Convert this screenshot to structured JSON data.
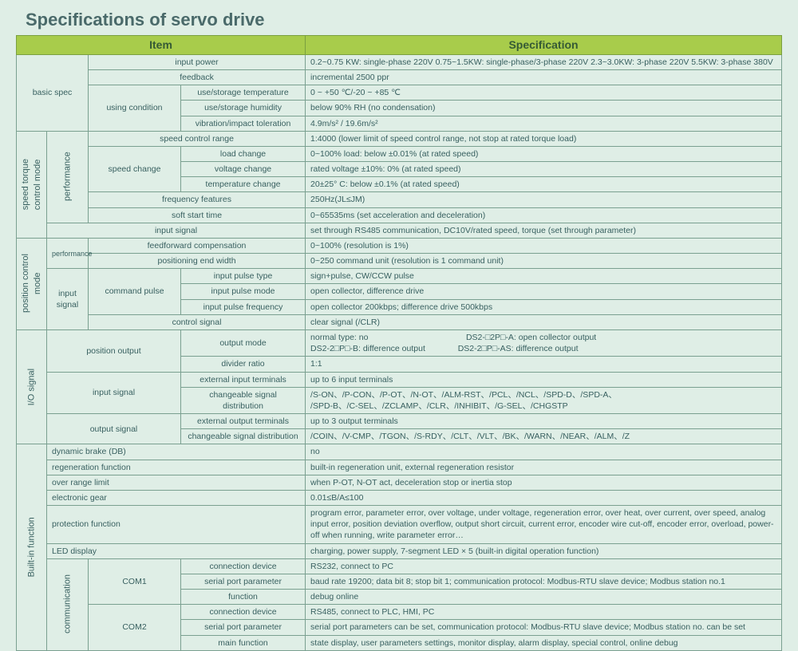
{
  "colors": {
    "bg": "#dfeee6",
    "headerBg": "#a8cc4b",
    "border": "#7aa090",
    "text": "#386060"
  },
  "title": "Specifications of servo drive",
  "header": {
    "item": "Item",
    "spec": "Specification"
  },
  "basic": {
    "label": "basic spec",
    "rows": {
      "input_power": {
        "l": "input power",
        "v": "0.2~0.75 KW: single-phase 220V  0.75~1.5KW: single-phase/3-phase 220V  2.3~3.0KW: 3-phase 220V  5.5KW: 3-phase 380V"
      },
      "feedback": {
        "l": "feedback",
        "v": "incremental 2500 ppr"
      },
      "using_cond": "using condition",
      "uc1": {
        "l": "use/storage temperature",
        "v": "0 ~ +50 ℃/-20 ~ +85 ℃"
      },
      "uc2": {
        "l": "use/storage humidity",
        "v": "below 90% RH (no condensation)"
      },
      "uc3": {
        "l": "vibration/impact toleration",
        "v": "4.9m/s²  / 19.6m/s²"
      }
    }
  },
  "stc": {
    "label": "speed torque\ncontrol mode",
    "perf": "performance",
    "rows": {
      "scr": {
        "l": "speed control range",
        "v": "1:4000 (lower limit of speed control range, not stop at rated torque load)"
      },
      "sc_label": "speed change",
      "sc1": {
        "l": "load change",
        "v": "0~100% load: below  ±0.01% (at rated speed)"
      },
      "sc2": {
        "l": "voltage change",
        "v": "rated voltage ±10%: 0% (at rated speed)"
      },
      "sc3": {
        "l": "temperature change",
        "v": "20±25° C: below  ±0.1% (at rated speed)"
      },
      "ff": {
        "l": "frequency features",
        "v": "250Hz(JL≤JM)"
      },
      "sst": {
        "l": "soft start time",
        "v": "0~65535ms (set acceleration and deceleration)"
      },
      "in": {
        "l": "input signal",
        "v": "set through RS485 communication, DC10V/rated speed, torque (set through parameter)"
      }
    }
  },
  "pcm": {
    "label": "position control\nmode",
    "perf": "performance",
    "rows": {
      "ffc": {
        "l": "feedforward compensation",
        "v": "0~100% (resolution is 1%)"
      },
      "pew": {
        "l": "positioning end width",
        "v": "0~250 command unit (resolution is 1 command unit)"
      },
      "is_label": "input\nsignal",
      "cp_label": "command pulse",
      "cp1": {
        "l": "input pulse type",
        "v": "sign+pulse, CW/CCW pulse"
      },
      "cp2": {
        "l": "input pulse mode",
        "v": "open collector, difference drive"
      },
      "cp3": {
        "l": "input pulse frequency",
        "v": "open collector 200kbps; difference drive 500kbps"
      },
      "cs": {
        "l": "control signal",
        "v": "clear signal (/CLR)"
      }
    }
  },
  "io": {
    "label": "I/O signal",
    "rows": {
      "po_label": "position output",
      "po1": {
        "l": "output mode",
        "v": "normal type: no                                          DS2-□2P□-A: open collector output\nDS2-2□P□-B: difference output              DS2-2□P□-AS: difference output"
      },
      "po2": {
        "l": "divider ratio",
        "v": "1:1"
      },
      "is_label": "input signal",
      "is1": {
        "l": "external input terminals",
        "v": "up to 6 input terminals"
      },
      "is2": {
        "l": "changeable signal\ndistribution",
        "v": "/S-ON、/P-CON、/P-OT、/N-OT、/ALM-RST、/PCL、/NCL、/SPD-D、/SPD-A、\n/SPD-B、/C-SEL、/ZCLAMP、/CLR、/INHIBIT、/G-SEL、/CHGSTP"
      },
      "os_label": "output signal",
      "os1": {
        "l": "external output terminals",
        "v": "up to 3 output terminals"
      },
      "os2": {
        "l": "changeable signal distribution",
        "v": "/COIN、/V-CMP、/TGON、/S-RDY、/CLT、/VLT、/BK、/WARN、/NEAR、/ALM、/Z"
      }
    }
  },
  "bi": {
    "label": "Built-in function",
    "rows": {
      "db": {
        "l": "dynamic brake (DB)",
        "v": "no"
      },
      "regen": {
        "l": "regeneration function",
        "v": "built-in regeneration unit, external regeneration resistor"
      },
      "orl": {
        "l": "over range limit",
        "v": "when P-OT, N-OT act, deceleration stop or inertia stop"
      },
      "eg": {
        "l": "electronic gear",
        "v": "0.01≤B/A≤100"
      },
      "prot": {
        "l": "protection function",
        "v": "program error, parameter error, over voltage, under voltage, regeneration error, over heat, over current, over speed, analog input error, position deviation overflow, output short circuit, current error, encoder wire cut-off, encoder error, overload, power-off when running, write parameter error…"
      },
      "led": {
        "l": "LED display",
        "v": "charging, power supply, 7-segment LED × 5 (built-in digital operation function)"
      },
      "comm": "communication",
      "com1": "COM1",
      "c11": {
        "l": "connection device",
        "v": "RS232, connect to PC"
      },
      "c12": {
        "l": "serial port parameter",
        "v": "baud rate 19200; data bit 8; stop bit 1; communication protocol: Modbus-RTU slave device; Modbus station no.1"
      },
      "c13": {
        "l": "function",
        "v": "debug online"
      },
      "com2": "COM2",
      "c21": {
        "l": "connection device",
        "v": "RS485, connect to PLC, HMI, PC"
      },
      "c22": {
        "l": "serial port parameter",
        "v": "serial port parameters can be set, communication protocol: Modbus-RTU slave device; Modbus station no. can be set"
      },
      "c23": {
        "l": "main function",
        "v": "state display, user parameters settings, monitor display, alarm display, special control, online debug"
      }
    }
  }
}
